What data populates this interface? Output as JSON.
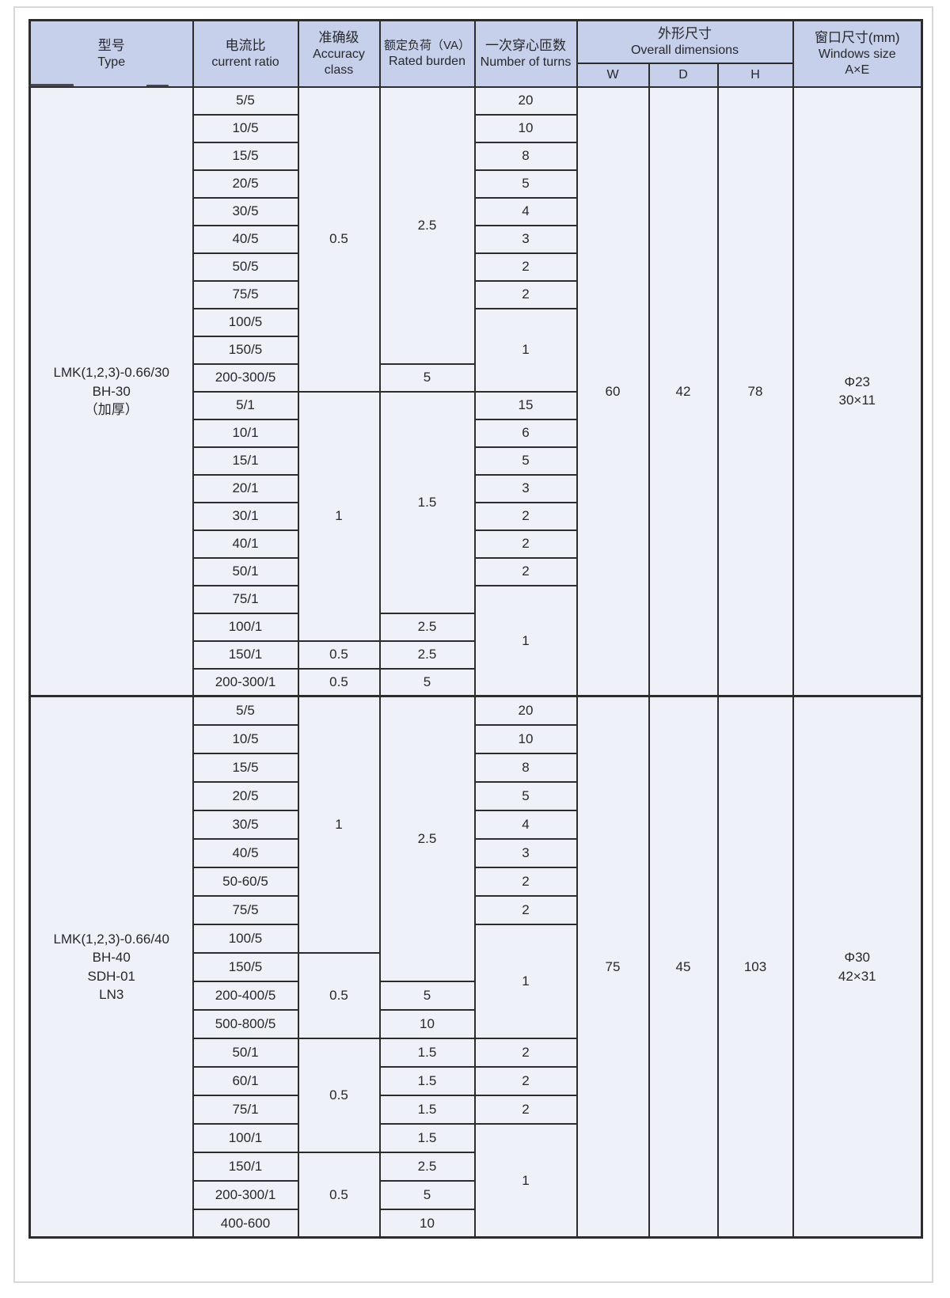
{
  "colors": {
    "header_bg": "#c7d0eb",
    "row_bg": "#eef1f7",
    "border": "#2c2c2c",
    "text": "#27272c"
  },
  "header": {
    "type": {
      "zh": "型号",
      "en": "Type"
    },
    "current_ratio": {
      "zh": "电流比",
      "en": "current ratio"
    },
    "accuracy": {
      "zh": "准确级",
      "en": "Accuracy class"
    },
    "burden": {
      "zh": "额定负荷（VA）",
      "en": "Rated burden"
    },
    "turns": {
      "zh": "一次穿心匝数",
      "en": "Number of turns"
    },
    "overall": {
      "zh": "外形尺寸",
      "en": "Overall dimensions",
      "sub": [
        "W",
        "D",
        "H"
      ]
    },
    "window": {
      "zh": "窗口尺寸(mm)",
      "en": "Windows size",
      "sub": "A×E"
    }
  },
  "blocks": [
    {
      "type_lines": [
        "LMK(1,2,3)-0.66/30",
        "BH-30",
        "（加厚）"
      ],
      "dims": {
        "w": "60",
        "d": "42",
        "h": "78"
      },
      "window_lines": [
        "Φ23",
        "30×11"
      ],
      "rows": [
        {
          "ratio": "5/5",
          "acc": {
            "t": "0.5",
            "rs": 11
          },
          "burden": {
            "t": "2.5",
            "rs": 10
          },
          "turns": {
            "t": "20"
          }
        },
        {
          "ratio": "10/5",
          "turns": {
            "t": "10"
          }
        },
        {
          "ratio": "15/5",
          "turns": {
            "t": "8"
          }
        },
        {
          "ratio": "20/5",
          "turns": {
            "t": "5"
          }
        },
        {
          "ratio": "30/5",
          "turns": {
            "t": "4"
          }
        },
        {
          "ratio": "40/5",
          "turns": {
            "t": "3"
          }
        },
        {
          "ratio": "50/5",
          "turns": {
            "t": "2"
          }
        },
        {
          "ratio": "75/5",
          "turns": {
            "t": "2"
          }
        },
        {
          "ratio": "100/5",
          "turns": {
            "t": "1",
            "rs": 3
          }
        },
        {
          "ratio": "150/5"
        },
        {
          "ratio": "200-300/5",
          "burden": {
            "t": "5"
          }
        },
        {
          "ratio": "5/1",
          "acc": {
            "t": "1",
            "rs": 9
          },
          "burden": {
            "t": "1.5",
            "rs": 8
          },
          "turns": {
            "t": "15"
          }
        },
        {
          "ratio": "10/1",
          "turns": {
            "t": "6"
          }
        },
        {
          "ratio": "15/1",
          "turns": {
            "t": "5"
          }
        },
        {
          "ratio": "20/1",
          "turns": {
            "t": "3"
          }
        },
        {
          "ratio": "30/1",
          "turns": {
            "t": "2"
          }
        },
        {
          "ratio": "40/1",
          "turns": {
            "t": "2"
          }
        },
        {
          "ratio": "50/1",
          "turns": {
            "t": "2"
          }
        },
        {
          "ratio": "75/1",
          "turns": {
            "t": "1",
            "rs": 4
          }
        },
        {
          "ratio": "100/1",
          "burden": {
            "t": "2.5"
          }
        },
        {
          "ratio": "150/1",
          "acc": {
            "t": "0.5"
          },
          "burden": {
            "t": "2.5"
          }
        },
        {
          "ratio": "200-300/1",
          "acc": {
            "t": "0.5"
          },
          "burden": {
            "t": "5"
          }
        }
      ]
    },
    {
      "type_lines": [
        "LMK(1,2,3)-0.66/40",
        "BH-40",
        "SDH-01",
        "LN3"
      ],
      "dims": {
        "w": "75",
        "d": "45",
        "h": "103"
      },
      "window_lines": [
        "Φ30",
        "42×31"
      ],
      "rows": [
        {
          "ratio": "5/5",
          "acc": {
            "t": "1",
            "rs": 9
          },
          "burden": {
            "t": "2.5",
            "rs": 10
          },
          "turns": {
            "t": "20"
          }
        },
        {
          "ratio": "10/5",
          "turns": {
            "t": "10"
          }
        },
        {
          "ratio": "15/5",
          "turns": {
            "t": "8"
          }
        },
        {
          "ratio": "20/5",
          "turns": {
            "t": "5"
          }
        },
        {
          "ratio": "30/5",
          "turns": {
            "t": "4"
          }
        },
        {
          "ratio": "40/5",
          "turns": {
            "t": "3"
          }
        },
        {
          "ratio": "50-60/5",
          "turns": {
            "t": "2"
          }
        },
        {
          "ratio": "75/5",
          "turns": {
            "t": "2"
          }
        },
        {
          "ratio": "100/5",
          "turns": {
            "t": "1",
            "rs": 4
          }
        },
        {
          "ratio": "150/5",
          "acc": {
            "t": "0.5",
            "rs": 3
          }
        },
        {
          "ratio": "200-400/5",
          "burden": {
            "t": "5"
          }
        },
        {
          "ratio": "500-800/5",
          "burden": {
            "t": "10"
          }
        },
        {
          "ratio": "50/1",
          "acc": {
            "t": "0.5",
            "rs": 4
          },
          "burden": {
            "t": "1.5"
          },
          "turns": {
            "t": "2"
          }
        },
        {
          "ratio": "60/1",
          "burden": {
            "t": "1.5"
          },
          "turns": {
            "t": "2"
          }
        },
        {
          "ratio": "75/1",
          "burden": {
            "t": "1.5"
          },
          "turns": {
            "t": "2"
          }
        },
        {
          "ratio": "100/1",
          "burden": {
            "t": "1.5"
          },
          "turns": {
            "t": "1",
            "rs": 4
          }
        },
        {
          "ratio": "150/1",
          "acc": {
            "t": "0.5",
            "rs": 3
          },
          "burden": {
            "t": "2.5"
          }
        },
        {
          "ratio": "200-300/1",
          "burden": {
            "t": "5"
          }
        },
        {
          "ratio": "400-600",
          "burden": {
            "t": "10"
          }
        }
      ]
    }
  ]
}
